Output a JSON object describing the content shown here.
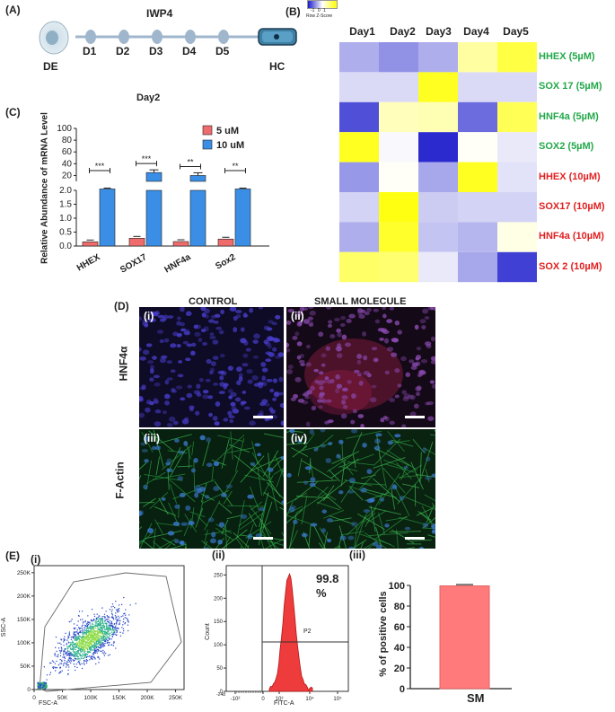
{
  "panels": {
    "A": "(A)",
    "B": "(B)",
    "C": "(C)",
    "D": "(D)",
    "E": "(E)"
  },
  "panelA": {
    "treatment": "IWP4",
    "start": "DE",
    "end": "HC",
    "days": [
      "D1",
      "D2",
      "D3",
      "D4",
      "D5"
    ]
  },
  "panelB": {
    "scale": {
      "title": "Row Z-Score",
      "ticks": [
        "-1",
        "0",
        "1"
      ]
    },
    "columns": [
      "Day1",
      "Day2",
      "Day3",
      "Day4",
      "Day5"
    ],
    "rows": [
      {
        "label": "HHEX (5µM)",
        "color": "#22a84a"
      },
      {
        "label": "SOX 17 (5µM)",
        "color": "#22a84a"
      },
      {
        "label": "HNF4a (5µM)",
        "color": "#22a84a"
      },
      {
        "label": "SOX2 (5µM)",
        "color": "#22a84a"
      },
      {
        "label": "HHEX (10µM)",
        "color": "#e02020"
      },
      {
        "label": "SOX17 (10µM)",
        "color": "#e02020"
      },
      {
        "label": "HNF4a (10µM)",
        "color": "#e02020"
      },
      {
        "label": "SOX 2 (10µM)",
        "color": "#e02020"
      }
    ],
    "zscores": [
      [
        -0.55,
        -0.75,
        -0.55,
        0.55,
        1.1
      ],
      [
        -0.25,
        -0.25,
        1.3,
        -0.25,
        -0.25
      ],
      [
        -1.2,
        0.4,
        0.45,
        -1.0,
        1.0
      ],
      [
        1.3,
        -0.05,
        -1.45,
        0.05,
        -0.15
      ],
      [
        -0.7,
        0.05,
        -0.6,
        1.3,
        -0.2
      ],
      [
        -0.3,
        1.4,
        -0.35,
        -0.3,
        -0.3
      ],
      [
        -0.55,
        1.25,
        -0.4,
        -0.5,
        0.15
      ],
      [
        0.9,
        0.85,
        -0.15,
        -0.6,
        -1.3
      ]
    ]
  },
  "chart_data": {
    "type": "bar",
    "title": "Day2",
    "ylabel": "Relative Abundance of mRNA Level",
    "categories": [
      "HHEX",
      "SOX17",
      "HNF4a",
      "Sox2"
    ],
    "series": [
      {
        "name": "5 uM",
        "color": "#f06b6b",
        "values": [
          0.15,
          0.28,
          0.16,
          0.25
        ]
      },
      {
        "name": "10 uM",
        "color": "#3a8ee6",
        "values": [
          2.05,
          25,
          20,
          2.05
        ]
      }
    ],
    "y_ticks_upper": [
      "100",
      "80",
      "60",
      "40",
      "20"
    ],
    "y_ticks_lower": [
      "2.0",
      "1.5",
      "1.0",
      "0.5",
      "0.0"
    ],
    "significance": [
      "***",
      "***",
      "**",
      "**"
    ]
  },
  "panelD": {
    "col_labels": [
      "CONTROL",
      "SMALL MOLECULE"
    ],
    "row_labels": [
      "HNF4α",
      "F-Actin"
    ],
    "subpanels": [
      "(i)",
      "(ii)",
      "(iii)",
      "(iv)"
    ]
  },
  "panelE": {
    "sub": [
      "(i)",
      "(ii)",
      "(iii)"
    ],
    "scatter": {
      "xlabel": "FSC-A",
      "ylabel": "SSC-A",
      "xticks": [
        "0",
        "50K",
        "100K",
        "150K",
        "200K",
        "250K"
      ],
      "yticks": [
        "0",
        "50K",
        "100K",
        "150K",
        "200K",
        "250K"
      ]
    },
    "hist": {
      "xlabel": "FITC-A",
      "ylabel": "Count",
      "yticks": [
        "0",
        "50",
        "100",
        "150",
        "200",
        "250"
      ],
      "xticks": [
        "-10²",
        "0",
        "10³",
        "10⁴",
        "10⁵"
      ],
      "xtick_left": "-248",
      "gate": "P2",
      "percent": "99.8 %"
    },
    "bar": {
      "ylabel": "% of positive cells",
      "category": "SM",
      "value": 99.5,
      "yticks": [
        "0",
        "20",
        "40",
        "60",
        "80",
        "100"
      ]
    }
  }
}
